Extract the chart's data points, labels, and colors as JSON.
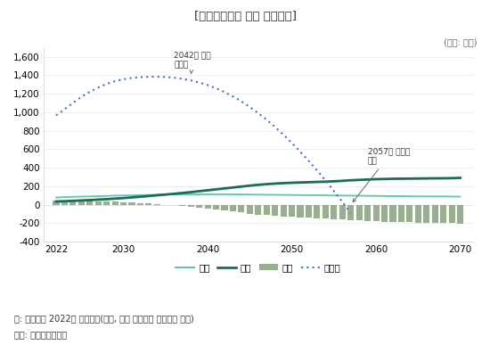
{
  "title": "[국민연금기금 장기 재정전망]",
  "unit_label": "(단위: 조원)",
  "footnote1": "주: 전망액은 2022년 불변가격(다만, 최대 적립금은 경상가격 기준)",
  "footnote2": "자료: 국회예산정책처",
  "years": [
    2022,
    2023,
    2024,
    2025,
    2026,
    2027,
    2028,
    2029,
    2030,
    2031,
    2032,
    2033,
    2034,
    2035,
    2036,
    2037,
    2038,
    2039,
    2040,
    2041,
    2042,
    2043,
    2044,
    2045,
    2046,
    2047,
    2048,
    2049,
    2050,
    2051,
    2052,
    2053,
    2054,
    2055,
    2056,
    2057,
    2058,
    2059,
    2060,
    2061,
    2062,
    2063,
    2064,
    2065,
    2066,
    2067,
    2068,
    2069,
    2070
  ],
  "revenue": [
    78,
    82,
    86,
    88,
    90,
    92,
    95,
    98,
    100,
    102,
    104,
    106,
    108,
    110,
    111,
    112,
    112,
    112,
    112,
    112,
    112,
    112,
    111,
    110,
    109,
    108,
    107,
    106,
    105,
    104,
    103,
    102,
    101,
    100,
    99,
    98,
    97,
    96,
    95,
    94,
    93,
    92,
    91,
    90,
    90,
    89,
    89,
    88,
    88
  ],
  "expenditure": [
    35,
    38,
    42,
    46,
    50,
    55,
    60,
    66,
    72,
    79,
    86,
    94,
    102,
    110,
    118,
    127,
    136,
    146,
    156,
    166,
    176,
    186,
    196,
    206,
    215,
    222,
    228,
    233,
    237,
    240,
    243,
    246,
    249,
    253,
    258,
    264,
    268,
    272,
    276,
    278,
    280,
    281,
    282,
    283,
    284,
    285,
    286,
    287,
    290
  ],
  "surplus": [
    43,
    44,
    44,
    42,
    40,
    37,
    35,
    32,
    28,
    23,
    18,
    12,
    6,
    0,
    -7,
    -15,
    -24,
    -34,
    -44,
    -54,
    -64,
    -74,
    -85,
    -96,
    -106,
    -114,
    -121,
    -127,
    -132,
    -136,
    -140,
    -144,
    -148,
    -153,
    -159,
    -166,
    -171,
    -176,
    -181,
    -184,
    -187,
    -189,
    -191,
    -193,
    -194,
    -196,
    -197,
    -199,
    -202
  ],
  "reserve": [
    965,
    1030,
    1100,
    1165,
    1220,
    1265,
    1305,
    1335,
    1355,
    1370,
    1378,
    1382,
    1383,
    1380,
    1372,
    1360,
    1343,
    1320,
    1292,
    1258,
    1217,
    1170,
    1117,
    1056,
    990,
    918,
    840,
    756,
    667,
    573,
    474,
    370,
    262,
    148,
    30,
    -90,
    null,
    null,
    null,
    null,
    null,
    null,
    null,
    null,
    null,
    null,
    null,
    null,
    null
  ],
  "colors": {
    "revenue": "#5BC8AF",
    "expenditure": "#1A6B58",
    "surplus_bar": "#7A9E6A",
    "reserve": "#4472C4"
  },
  "ylim": [
    -400,
    1700
  ],
  "yticks": [
    -400,
    -200,
    0,
    200,
    400,
    600,
    800,
    1000,
    1200,
    1400,
    1600
  ],
  "xticks": [
    2022,
    2030,
    2040,
    2050,
    2060,
    2070
  ],
  "background_color": "#ffffff"
}
